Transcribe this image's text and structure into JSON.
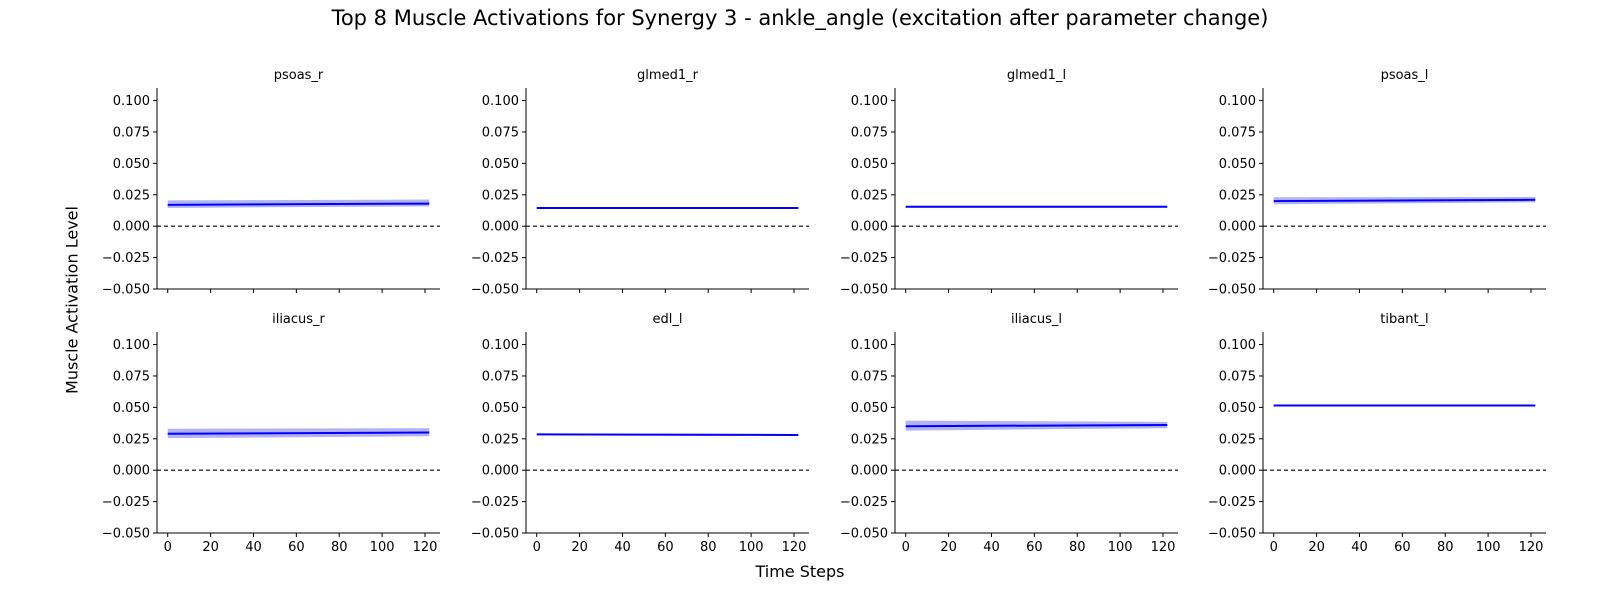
{
  "figure": {
    "title": "Top 8 Muscle Activations for Synergy 3 - ankle_angle (excitation after parameter change)",
    "xlabel": "Time Steps",
    "ylabel": "Muscle Activation Level"
  },
  "colors": {
    "line": "#0000ff",
    "band": "#9999ee",
    "zero_line": "#000000"
  },
  "chart_data": {
    "type": "line",
    "layout": "2x4 grid of subplots",
    "xlim": [
      -5,
      127
    ],
    "ylim": [
      -0.05,
      0.11
    ],
    "xticks": [
      0,
      20,
      40,
      60,
      80,
      100,
      120
    ],
    "yticks": [
      -0.05,
      -0.025,
      0.0,
      0.025,
      0.05,
      0.075,
      0.1
    ],
    "ytick_labels": [
      "−0.050",
      "−0.025",
      "0.000",
      "0.025",
      "0.050",
      "0.075",
      "0.100"
    ],
    "reference_line": {
      "y": 0.0,
      "style": "dashed"
    },
    "band": "mean ± std (shaded)",
    "subplots": [
      {
        "title": "psoas_r",
        "x": [
          0,
          122
        ],
        "mean": [
          0.017,
          0.018
        ],
        "lower": [
          0.0145,
          0.0158
        ],
        "upper": [
          0.0205,
          0.0212
        ]
      },
      {
        "title": "glmed1_r",
        "x": [
          0,
          122
        ],
        "mean": [
          0.0145,
          0.0145
        ],
        "lower": [
          0.0138,
          0.0138
        ],
        "upper": [
          0.0152,
          0.0152
        ]
      },
      {
        "title": "glmed1_l",
        "x": [
          0,
          122
        ],
        "mean": [
          0.0155,
          0.0155
        ],
        "lower": [
          0.0148,
          0.0148
        ],
        "upper": [
          0.0162,
          0.0162
        ]
      },
      {
        "title": "psoas_l",
        "x": [
          0,
          122
        ],
        "mean": [
          0.02,
          0.021
        ],
        "lower": [
          0.0175,
          0.019
        ],
        "upper": [
          0.023,
          0.0232
        ]
      },
      {
        "title": "iliacus_r",
        "x": [
          0,
          122
        ],
        "mean": [
          0.029,
          0.03
        ],
        "lower": [
          0.0255,
          0.027
        ],
        "upper": [
          0.033,
          0.0335
        ]
      },
      {
        "title": "edl_l",
        "x": [
          0,
          122
        ],
        "mean": [
          0.0285,
          0.028
        ],
        "lower": [
          0.0278,
          0.0273
        ],
        "upper": [
          0.0292,
          0.0287
        ]
      },
      {
        "title": "iliacus_l",
        "x": [
          0,
          122
        ],
        "mean": [
          0.035,
          0.036
        ],
        "lower": [
          0.0315,
          0.0335
        ],
        "upper": [
          0.0395,
          0.0385
        ]
      },
      {
        "title": "tibant_l",
        "x": [
          0,
          122
        ],
        "mean": [
          0.0515,
          0.0515
        ],
        "lower": [
          0.0508,
          0.0508
        ],
        "upper": [
          0.0522,
          0.0522
        ]
      }
    ]
  }
}
